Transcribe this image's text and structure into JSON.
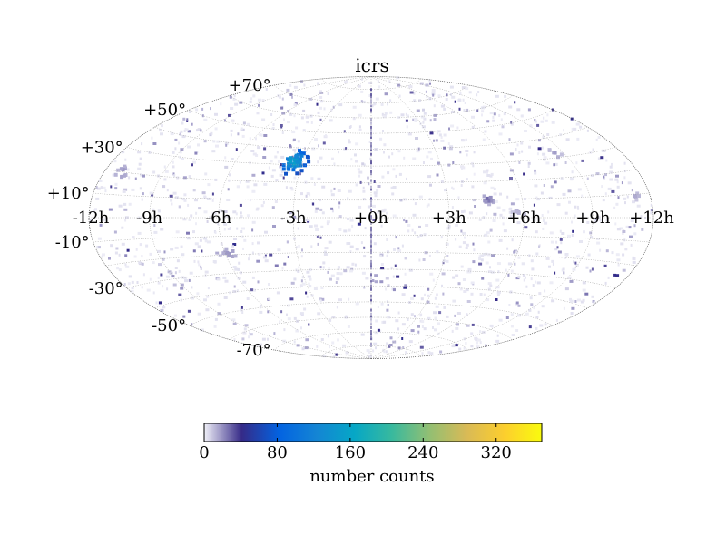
{
  "chart_data": {
    "type": "heatmap",
    "projection": "hammer",
    "frame": "icrs",
    "title": "icrs",
    "lon_ticks": [
      {
        "value": -12,
        "label": "-12h"
      },
      {
        "value": -9,
        "label": "-9h"
      },
      {
        "value": -6,
        "label": "-6h"
      },
      {
        "value": -3,
        "label": "-3h"
      },
      {
        "value": 0,
        "label": "+0h"
      },
      {
        "value": 3,
        "label": "+3h"
      },
      {
        "value": 6,
        "label": "+6h"
      },
      {
        "value": 9,
        "label": "+9h"
      },
      {
        "value": 12,
        "label": "+12h"
      }
    ],
    "lat_ticks": [
      {
        "value": 70,
        "label": "+70°"
      },
      {
        "value": 50,
        "label": "+50°"
      },
      {
        "value": 30,
        "label": "+30°"
      },
      {
        "value": 10,
        "label": "+10°"
      },
      {
        "value": -10,
        "label": "-10°"
      },
      {
        "value": -30,
        "label": "-30°"
      },
      {
        "value": -50,
        "label": "-50°"
      },
      {
        "value": -70,
        "label": "-70°"
      }
    ],
    "grid": true,
    "colorbar": {
      "label": "number counts",
      "min": 0,
      "max": 370,
      "ticks": [
        {
          "value": 0,
          "label": "0"
        },
        {
          "value": 80,
          "label": "80"
        },
        {
          "value": 160,
          "label": "160"
        },
        {
          "value": 240,
          "label": "240"
        },
        {
          "value": 320,
          "label": "320"
        }
      ],
      "colormap": [
        "#f0f0f8",
        "#352a87",
        "#0363e1",
        "#1485d4",
        "#06a7c6",
        "#38b99e",
        "#92bf73",
        "#d9ba56",
        "#fcce2e",
        "#f9fb0e"
      ]
    },
    "hotspots": [
      {
        "ra_h": -3.4,
        "dec": 32,
        "peak": 175,
        "spread_h": 0.35,
        "spread_dec": 4,
        "n": 60
      },
      {
        "ra_h": 4.6,
        "dec": 10,
        "peak": 30,
        "spread_h": 0.15,
        "spread_dec": 1.5,
        "n": 12
      },
      {
        "ra_h": -11.0,
        "dec": 20,
        "peak": 25,
        "spread_h": 0.2,
        "spread_dec": 2,
        "n": 10
      },
      {
        "ra_h": -5.8,
        "dec": -19,
        "peak": 22,
        "spread_h": 0.3,
        "spread_dec": 2,
        "n": 10
      },
      {
        "ra_h": 11.3,
        "dec": 9,
        "peak": 20,
        "spread_h": 0.1,
        "spread_dec": 1,
        "n": 5
      },
      {
        "ra_h": 8.6,
        "dec": 32,
        "peak": 18,
        "spread_h": 0.2,
        "spread_dec": 2,
        "n": 6
      },
      {
        "ra_h": 5.8,
        "dec": 3,
        "peak": 15,
        "spread_h": 0.2,
        "spread_dec": 2,
        "n": 6
      }
    ]
  }
}
